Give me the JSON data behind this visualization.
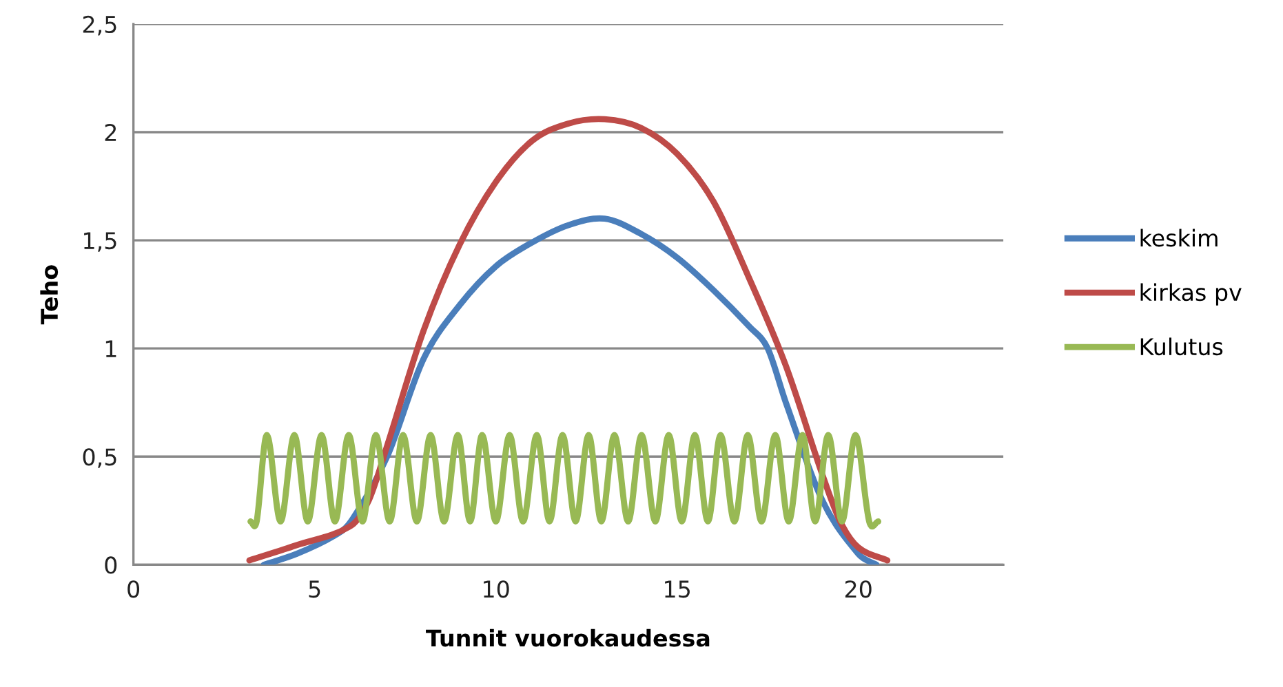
{
  "chart_data": {
    "type": "line",
    "xlabel": "Tunnit vuorokaudessa",
    "ylabel": "Teho",
    "xlim": [
      0,
      24
    ],
    "xticks": [
      0,
      5,
      10,
      15,
      20
    ],
    "ylim": [
      0,
      2.5
    ],
    "yticks": [
      0,
      {
        "value": 0.5,
        "label": "0,5"
      },
      1,
      {
        "value": 1.5,
        "label": "1,5"
      },
      2,
      {
        "value": 2.5,
        "label": "2,5"
      }
    ],
    "grid": "y",
    "legend": "right",
    "marker": "none",
    "line_style": "solid",
    "series": [
      {
        "name": "keskim",
        "color": "#4a7ebb",
        "x": [
          3.6,
          4.5,
          5.5,
          6,
          7,
          8,
          9,
          10,
          11,
          12,
          13,
          14,
          15,
          16,
          17,
          17.5,
          18,
          19,
          20,
          20.5
        ],
        "values": [
          0,
          0.05,
          0.13,
          0.2,
          0.5,
          0.95,
          1.2,
          1.38,
          1.49,
          1.57,
          1.6,
          1.53,
          1.42,
          1.27,
          1.1,
          1.0,
          0.75,
          0.3,
          0.05,
          0
        ]
      },
      {
        "name": "kirkas pv",
        "color": "#be4b48",
        "x": [
          3.2,
          4.5,
          6,
          6.5,
          7,
          8,
          9,
          10,
          11,
          12,
          13,
          14,
          15,
          16,
          17,
          18,
          19,
          19.5,
          20,
          20.8
        ],
        "values": [
          0.02,
          0.09,
          0.18,
          0.3,
          0.55,
          1.08,
          1.48,
          1.77,
          1.96,
          2.04,
          2.06,
          2.02,
          1.9,
          1.68,
          1.32,
          0.92,
          0.42,
          0.2,
          0.08,
          0.02
        ]
      },
      {
        "name": "Kulutus",
        "color": "#98b954",
        "x": [
          3.23,
          3.4,
          3.68,
          4.06,
          4.44,
          4.81,
          5.19,
          5.56,
          5.94,
          6.32,
          6.69,
          7.07,
          7.44,
          7.82,
          8.2,
          8.57,
          8.95,
          9.29,
          9.62,
          10.0,
          10.38,
          10.75,
          11.13,
          11.48,
          11.84,
          12.2,
          12.56,
          12.91,
          13.27,
          13.65,
          14.02,
          14.4,
          14.77,
          15.13,
          15.49,
          15.85,
          16.2,
          16.58,
          16.95,
          17.33,
          17.71,
          18.08,
          18.46,
          18.81,
          19.17,
          19.55,
          19.92,
          20.3,
          20.55
        ],
        "values": [
          0.2,
          0.2,
          0.6,
          0.2,
          0.6,
          0.2,
          0.6,
          0.2,
          0.6,
          0.2,
          0.6,
          0.2,
          0.6,
          0.2,
          0.6,
          0.2,
          0.6,
          0.2,
          0.6,
          0.2,
          0.6,
          0.2,
          0.6,
          0.2,
          0.6,
          0.2,
          0.6,
          0.2,
          0.6,
          0.2,
          0.6,
          0.2,
          0.6,
          0.2,
          0.6,
          0.2,
          0.6,
          0.2,
          0.6,
          0.2,
          0.6,
          0.2,
          0.6,
          0.2,
          0.6,
          0.2,
          0.6,
          0.2,
          0.2
        ]
      }
    ]
  }
}
